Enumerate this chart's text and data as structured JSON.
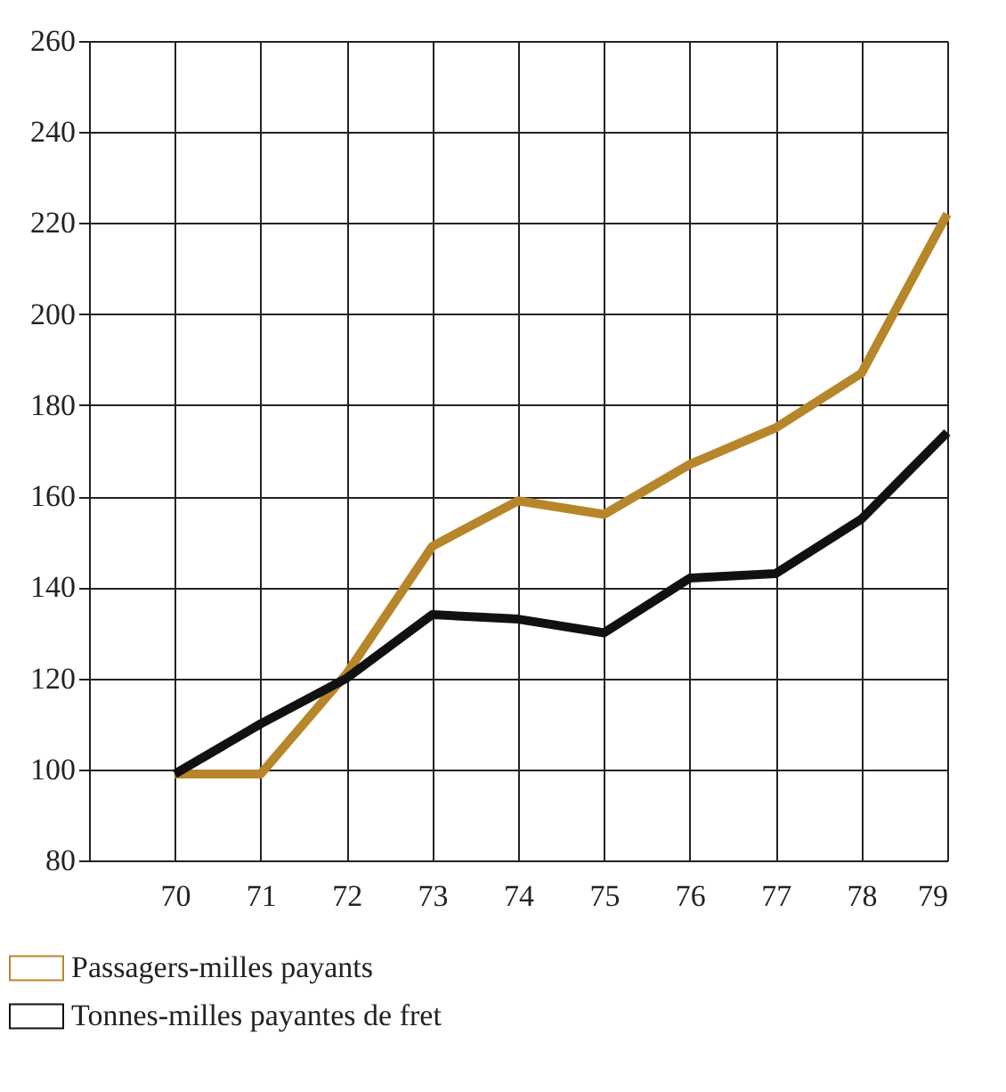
{
  "chart_data": {
    "type": "line",
    "x": [
      70,
      71,
      72,
      73,
      74,
      75,
      76,
      77,
      78,
      79
    ],
    "series": [
      {
        "name": "Passagers-milles payants",
        "color": "#b8862a",
        "values": [
          99,
          99,
          121,
          149,
          159,
          156,
          167,
          175,
          187,
          222
        ]
      },
      {
        "name": "Tonnes-milles payantes de fret",
        "color": "#111111",
        "values": [
          99,
          110,
          120,
          134,
          133,
          130,
          142,
          143,
          155,
          174
        ]
      }
    ],
    "xlim": [
      69,
      79
    ],
    "xticks": [
      {
        "value": 69,
        "label": null
      },
      70,
      71,
      72,
      73,
      74,
      75,
      76,
      77,
      78,
      79
    ],
    "ylim": [
      80,
      260
    ],
    "yticks": [
      80,
      100,
      120,
      140,
      160,
      180,
      200,
      220,
      240,
      260
    ],
    "grid": true,
    "legend": "bottom left",
    "marker": "none",
    "line_style": "solid"
  }
}
